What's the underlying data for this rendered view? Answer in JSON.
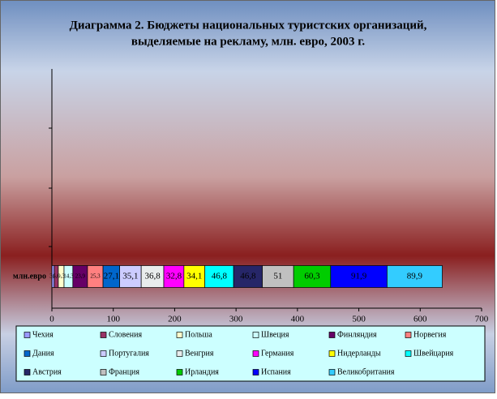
{
  "chart_data": {
    "type": "stacked-bar-horizontal",
    "title": [
      "Диаграмма 2. Бюджеты национальных туристских организаций,",
      "выделяемые на рекламу, млн. евро, 2003 г."
    ],
    "categories": [
      "млн.евро"
    ],
    "xlim": [
      0,
      700
    ],
    "xticks": [
      0,
      100,
      200,
      300,
      400,
      500,
      600,
      700
    ],
    "legend": "bottom",
    "series": [
      {
        "name": "Чехия",
        "color": "#9999ff",
        "values": [
          3.9
        ],
        "value_labels": [
          "3,9"
        ]
      },
      {
        "name": "Словения",
        "color": "#993366",
        "values": [
          6.6
        ],
        "value_labels": [
          "6,6"
        ]
      },
      {
        "name": "Польша",
        "color": "#ffffcc",
        "values": [
          9.3
        ],
        "value_labels": [
          "9,3"
        ]
      },
      {
        "name": "Швеция",
        "color": "#ccffff",
        "values": [
          14.3
        ],
        "value_labels": [
          "14,3"
        ]
      },
      {
        "name": "Финляндия",
        "color": "#660066",
        "values": [
          23.9
        ],
        "value_labels": [
          "23,9"
        ]
      },
      {
        "name": "Норвегия",
        "color": "#ff8080",
        "values": [
          25.3
        ],
        "value_labels": [
          "25,3"
        ]
      },
      {
        "name": "Дания",
        "color": "#0066cc",
        "values": [
          27.1
        ],
        "value_labels": [
          "27,1"
        ]
      },
      {
        "name": "Португалия",
        "color": "#ccccff",
        "values": [
          35.1
        ],
        "value_labels": [
          "35,1"
        ]
      },
      {
        "name": "Венгрия",
        "color": "#e8ecec",
        "values": [
          36.8
        ],
        "value_labels": [
          "36,8"
        ]
      },
      {
        "name": "Германия",
        "color": "#ff00ff",
        "values": [
          32.8
        ],
        "value_labels": [
          "32,8"
        ]
      },
      {
        "name": "Нидерланды",
        "color": "#ffff00",
        "values": [
          34.1
        ],
        "value_labels": [
          "34,1"
        ]
      },
      {
        "name": "Швейцария",
        "color": "#00ffff",
        "values": [
          46.8
        ],
        "value_labels": [
          "46,8"
        ]
      },
      {
        "name": "Австрия",
        "color": "#262668",
        "values": [
          46.8
        ],
        "value_labels": [
          "46,8"
        ]
      },
      {
        "name": "Франция",
        "color": "#c0c0c0",
        "values": [
          51
        ]
      },
      {
        "name": "Ирландия",
        "color": "#00cc00",
        "values": [
          60.3
        ],
        "value_labels": [
          "60,3"
        ]
      },
      {
        "name": "Испания",
        "color": "#0000ff",
        "values": [
          91.9
        ],
        "value_labels": [
          "91,9"
        ]
      },
      {
        "name": "Великобритания",
        "color": "#33ccff",
        "values": [
          89.9
        ],
        "value_labels": [
          "89,9"
        ]
      }
    ]
  }
}
